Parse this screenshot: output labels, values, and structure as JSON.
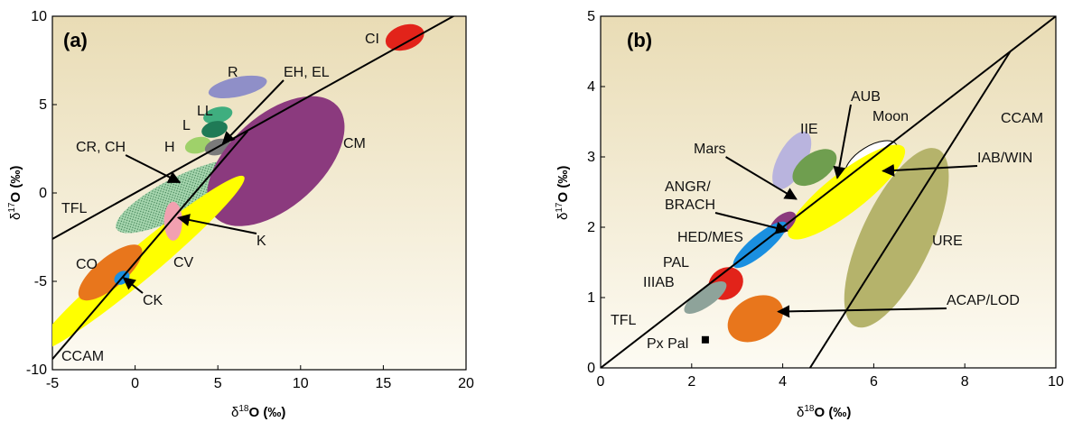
{
  "chart_data": [
    {
      "panel": "(a)",
      "type": "scatter",
      "xlabel": "δ18O (‰)",
      "ylabel": "δ17O (‰)",
      "xlim": [
        -5,
        20
      ],
      "ylim": [
        -10,
        10
      ],
      "xticks": [
        -5,
        0,
        5,
        10,
        15,
        20
      ],
      "yticks": [
        -10,
        -5,
        0,
        5,
        10
      ],
      "grid": false,
      "background": "#f2e8cc",
      "lines": [
        {
          "name": "TFL",
          "x": [
            -5,
            20
          ],
          "y": [
            -2.6,
            10.4
          ]
        },
        {
          "name": "CCAM",
          "x": [
            -5,
            6.8
          ],
          "y": [
            -9.4,
            3.5
          ]
        }
      ],
      "regions": [
        {
          "name": "CI",
          "cx": 16.3,
          "cy": 8.8,
          "rx": 1.2,
          "ry": 0.7,
          "angle": 18,
          "color": "#e2231a"
        },
        {
          "name": "R",
          "cx": 6.2,
          "cy": 6.0,
          "rx": 1.8,
          "ry": 0.55,
          "angle": 12,
          "color": "#8f8fc8"
        },
        {
          "name": "LL",
          "cx": 5.0,
          "cy": 4.4,
          "rx": 0.9,
          "ry": 0.45,
          "angle": 15,
          "color": "#3fae7f"
        },
        {
          "name": "L",
          "cx": 4.8,
          "cy": 3.6,
          "rx": 0.8,
          "ry": 0.45,
          "angle": 15,
          "color": "#1f7a56"
        },
        {
          "name": "H",
          "cx": 3.8,
          "cy": 2.7,
          "rx": 0.8,
          "ry": 0.45,
          "angle": 15,
          "color": "#9fd16a"
        },
        {
          "name": "EH, EL",
          "cx": 5.0,
          "cy": 2.6,
          "rx": 0.8,
          "ry": 0.45,
          "angle": 15,
          "color": "#7a7a7a"
        },
        {
          "name": "CR, CH",
          "cx": 2.7,
          "cy": -0.2,
          "rx": 4.3,
          "ry": 1.1,
          "angle": 27,
          "color": "#a8d7b0"
        },
        {
          "name": "CM",
          "cx": 8.5,
          "cy": 1.8,
          "rx": 5.0,
          "ry": 2.6,
          "angle": 42,
          "color": "#8b3a7e"
        },
        {
          "name": "CV",
          "cx": 0.3,
          "cy": -4.0,
          "rx": 8.2,
          "ry": 0.9,
          "angle": 40,
          "color": "#ffff00"
        },
        {
          "name": "K",
          "cx": 2.3,
          "cy": -1.6,
          "rx": 0.55,
          "ry": 1.1,
          "angle": 0,
          "color": "#f2a0b0"
        },
        {
          "name": "CO",
          "cx": -1.5,
          "cy": -4.5,
          "rx": 2.4,
          "ry": 0.85,
          "angle": 40,
          "color": "#e8761c"
        },
        {
          "name": "CK",
          "cx": -0.8,
          "cy": -4.8,
          "rx": 0.5,
          "ry": 0.35,
          "angle": 35,
          "color": "#1a8fe0"
        }
      ],
      "labels": [
        "(a)",
        "CI",
        "R",
        "EH, EL",
        "LL",
        "L",
        "H",
        "CR, CH",
        "CM",
        "TFL",
        "K",
        "CV",
        "CO",
        "CK",
        "CCAM"
      ],
      "arrows": [
        {
          "from_label": "EH, EL",
          "to": [
            5.3,
            2.8
          ]
        },
        {
          "from_label": "CR, CH",
          "to": [
            2.7,
            0.6
          ]
        },
        {
          "from_label": "K",
          "to": [
            2.6,
            -1.4
          ]
        },
        {
          "from_label": "CK",
          "to": [
            -0.7,
            -4.8
          ]
        }
      ]
    },
    {
      "panel": "(b)",
      "type": "scatter",
      "xlabel": "δ18O (‰)",
      "ylabel": "δ17O (‰)",
      "xlim": [
        0,
        10
      ],
      "ylim": [
        0,
        5
      ],
      "xticks": [
        0,
        2,
        4,
        6,
        8,
        10
      ],
      "yticks": [
        0,
        1,
        2,
        3,
        4,
        5
      ],
      "grid": false,
      "background": "#f2e8cc",
      "lines": [
        {
          "name": "TFL",
          "x": [
            0,
            10
          ],
          "y": [
            0,
            5
          ]
        },
        {
          "name": "CCAM",
          "x": [
            4.6,
            9.0
          ],
          "y": [
            0,
            4.5
          ]
        }
      ],
      "regions": [
        {
          "name": "IIE",
          "cx": 4.2,
          "cy": 2.95,
          "rx": 0.7,
          "ry": 0.2,
          "angle": 62,
          "color": "#b9b4de"
        },
        {
          "name": "Mars",
          "cx": 4.7,
          "cy": 2.85,
          "rx": 0.55,
          "ry": 0.2,
          "angle": 35,
          "color": "#6f9e4f"
        },
        {
          "name": "Moon",
          "cx": 5.95,
          "cy": 2.95,
          "rx": 0.65,
          "ry": 0.2,
          "angle": 32,
          "color": "#ffffff"
        },
        {
          "name": "AUB",
          "cx": 5.25,
          "cy": 2.6,
          "rx": 0.35,
          "ry": 0.12,
          "angle": 30,
          "color": "#f2a0b0"
        },
        {
          "name": "IAB/WIN",
          "cx": 5.4,
          "cy": 2.5,
          "rx": 1.6,
          "ry": 0.28,
          "angle": 38,
          "color": "#ffff00"
        },
        {
          "name": "ANGR/BRACH",
          "cx": 4.0,
          "cy": 2.05,
          "rx": 0.35,
          "ry": 0.12,
          "angle": 40,
          "color": "#8b3a7e"
        },
        {
          "name": "HED/MES",
          "cx": 3.5,
          "cy": 1.75,
          "rx": 0.75,
          "ry": 0.14,
          "angle": 40,
          "color": "#1a8fe0"
        },
        {
          "name": "PAL",
          "cx": 2.75,
          "cy": 1.2,
          "rx": 0.4,
          "ry": 0.22,
          "angle": 35,
          "color": "#e2231a"
        },
        {
          "name": "IIIAB",
          "cx": 2.3,
          "cy": 1.0,
          "rx": 0.55,
          "ry": 0.13,
          "angle": 35,
          "color": "#8ea39a"
        },
        {
          "name": "URE",
          "cx": 6.5,
          "cy": 1.85,
          "rx": 2.15,
          "ry": 0.5,
          "angle": 65,
          "color": "#b5b36b"
        },
        {
          "name": "ACAP/LOD",
          "cx": 3.4,
          "cy": 0.7,
          "rx": 0.65,
          "ry": 0.3,
          "angle": 30,
          "color": "#e8761c"
        }
      ],
      "points": [
        {
          "name": "Px Pal",
          "x": 2.3,
          "y": 0.4,
          "marker": "square"
        }
      ],
      "labels": [
        "(b)",
        "AUB",
        "Moon",
        "CCAM",
        "IIE",
        "Mars",
        "IAB/WIN",
        "ANGR/",
        "BRACH",
        "HED/MES",
        "URE",
        "PAL",
        "IIIAB",
        "ACAP/LOD",
        "TFL",
        "Px Pal"
      ],
      "arrows": [
        {
          "from_label": "AUB",
          "to": [
            5.2,
            2.7
          ]
        },
        {
          "from_label": "Mars",
          "to": [
            4.3,
            2.4
          ]
        },
        {
          "from_label": "IAB/WIN",
          "to": [
            6.2,
            2.8
          ]
        },
        {
          "from_label": "ANGR/BRACH",
          "to": [
            4.1,
            1.95
          ]
        },
        {
          "from_label": "ACAP/LOD",
          "to": [
            3.9,
            0.8
          ]
        }
      ]
    }
  ],
  "figure": {
    "panels": [
      {
        "tag": "(a)",
        "xticks": [
          "-5",
          "0",
          "5",
          "10",
          "15",
          "20"
        ],
        "yticks": [
          "-10",
          "-5",
          "0",
          "5",
          "10"
        ],
        "xlabel": {
          "delta": "δ",
          "sup": "18",
          "main": "O (‰)"
        },
        "ylabel": {
          "delta": "δ",
          "sup": "17",
          "main": "O (‰)"
        },
        "labels": {
          "CI": "CI",
          "R": "R",
          "EH_EL": "EH, EL",
          "LL": "LL",
          "L": "L",
          "H": "H",
          "CR_CH": "CR, CH",
          "CM": "CM",
          "TFL": "TFL",
          "K": "K",
          "CV": "CV",
          "CO": "CO",
          "CK": "CK",
          "CCAM": "CCAM"
        }
      },
      {
        "tag": "(b)",
        "xticks": [
          "0",
          "2",
          "4",
          "6",
          "8",
          "10"
        ],
        "yticks": [
          "0",
          "1",
          "2",
          "3",
          "4",
          "5"
        ],
        "xlabel": {
          "delta": "δ",
          "sup": "18",
          "main": "O (‰)"
        },
        "ylabel": {
          "delta": "δ",
          "sup": "17",
          "main": "O (‰)"
        },
        "labels": {
          "AUB": "AUB",
          "Moon": "Moon",
          "CCAM": "CCAM",
          "IIE": "IIE",
          "Mars": "Mars",
          "IAB_WIN": "IAB/WIN",
          "ANGR": "ANGR/",
          "BRACH": "BRACH",
          "HED_MES": "HED/MES",
          "URE": "URE",
          "PAL": "PAL",
          "IIIAB": "IIIAB",
          "ACAP_LOD": "ACAP/LOD",
          "TFL": "TFL",
          "PxPal": "Px Pal"
        }
      }
    ]
  }
}
